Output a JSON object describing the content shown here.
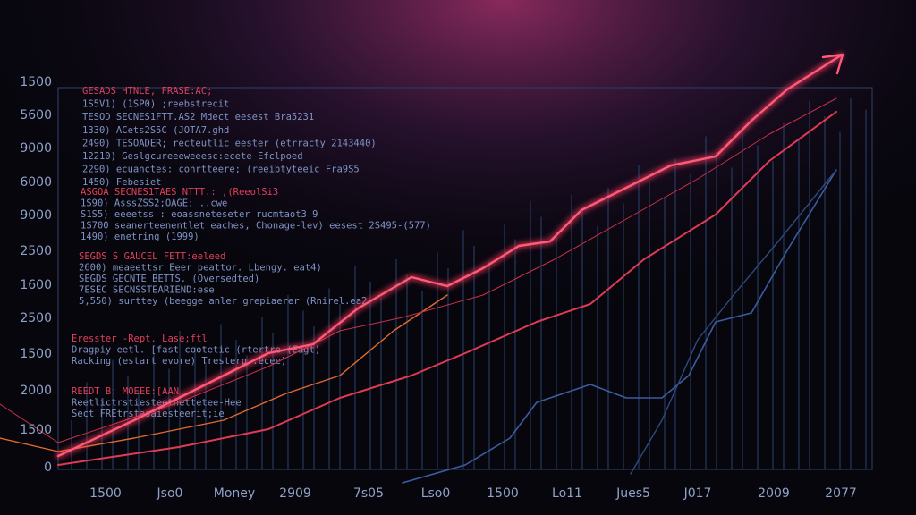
{
  "y_labels": [
    "1500",
    "5600",
    "9000",
    "6000",
    "9000",
    "2500",
    "1600",
    "2500",
    "1500",
    "2000",
    "1500",
    "0"
  ],
  "x_labels": [
    "1500",
    "Jso0",
    "Money",
    "2909",
    "7s05",
    "Lso0",
    "1500",
    "Lo11",
    "Jues5",
    "J017",
    "2009",
    "2077"
  ],
  "text_blocks": [
    [
      "GESADS HTNLE, FRASE:AC;",
      "1S5V1) (1SP0) ;reebstrecit",
      "TESOD SECNES1FTT.AS2 Mdect eesest Bra5231",
      "1330) ACets2S5C (JOTA7.ghd",
      "2490) TESOADER; recteutlic eester (etrracty 2143440)",
      "12210) Geslgcureeeweeesc:ecete Efclpoed",
      "2290) ecuanctes: conrtteere; (reeibtyteeic Fra9S5",
      "1450) Febesiet"
    ],
    [
      "ASGOA SECNES1TAES NTTT.: ,(ReeolSi3",
      "1S90) AsssZSS2;OAGE; ..cwe",
      "S1S5) eeeetss : eoassneteseter rucmtaot3 9",
      "1S700 seanerteenentlet eaches, Chonage-lev) eesest 2S495-(577)",
      "1490) enetring (1999)"
    ],
    [
      "SEGDS S GAUCEL FETT:eeleed",
      "2600) meaeettsr Eeer peattor. Lbengy. eat4)",
      "SEGDS GECNTE BETTS. (Oversedted)",
      "7ESEC SECNSSTEARIEND:ese",
      "5,550) surttey (beegge anler grepiaerer (Rnirel.ea2"
    ],
    [
      "Eresster -Rept. Lase;ftl",
      "Dragpiy eetl. [fast cootetic (rtertre (Eagt)",
      "Racking (estart evore) Tresterp :ecee)"
    ],
    [
      "REEDT B: MOEEE:[AAN",
      "Reetlictrstiesteetnettetee-Hee",
      "Sect FREtrstasaiesteerit;ie"
    ]
  ]
}
